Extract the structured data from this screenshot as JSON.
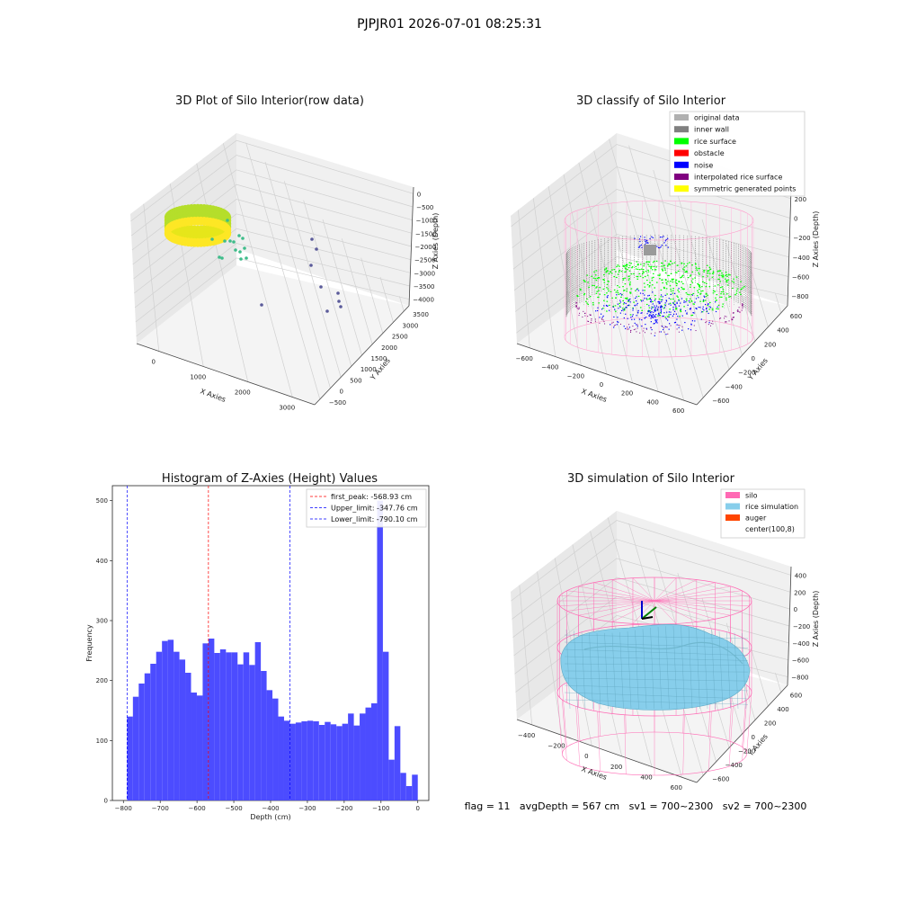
{
  "suptitle": "PJPJR01 2026-07-01 08:25:31",
  "footer": "flag = 11   avgDepth = 567 cm   sv1 = 700~2300   sv2 = 700~2300",
  "colors": {
    "silo": "#ff69b4",
    "rice_sim": "#87ceeb",
    "auger": "#ff4500",
    "original": "#b0b0b0",
    "inner_wall": "#808080",
    "rice_surface": "#00ff00",
    "obstacle": "#ff0000",
    "noise": "#0000ff",
    "interp": "#800080",
    "symmetric": "#ffff00",
    "hist": "#4c4cff"
  },
  "chart_data": [
    {
      "type": "scatter3d",
      "title": "3D Plot of Silo Interior(row data)",
      "xlabel": "X Axies",
      "ylabel": "Y Axies",
      "zlabel": "Z Axies (Depth)",
      "xticks": [
        "0",
        "1000",
        "2000",
        "3000"
      ],
      "yticks": [
        "−500",
        "0",
        "500",
        "1000",
        "1500",
        "2000",
        "2500",
        "3000",
        "3500"
      ],
      "zticks": [
        "0",
        "−500",
        "−1000",
        "−1500",
        "−2000",
        "−2500",
        "−3000",
        "−3500",
        "−4000"
      ]
    },
    {
      "type": "scatter3d",
      "title": "3D classify of Silo Interior",
      "xlabel": "X Axies",
      "ylabel": "Y Axies",
      "zlabel": "Z Axies (Depth)",
      "xticks": [
        "−600",
        "−400",
        "−200",
        "0",
        "200",
        "400",
        "600"
      ],
      "yticks": [
        "−600",
        "−400",
        "−200",
        "0",
        "200",
        "400",
        "600"
      ],
      "zticks": [
        "200",
        "0",
        "−200",
        "−400",
        "−600",
        "−800"
      ],
      "legend": [
        "original data",
        "inner wall",
        "rice surface",
        "obstacle",
        "noise",
        "interpolated rice surface",
        "symmetric generated points"
      ],
      "legend_position": "top-right"
    },
    {
      "type": "bar",
      "title": "Histogram of Z-Axies (Height) Values",
      "xlabel": "Depth (cm)",
      "ylabel": "Frequency",
      "xlim": [
        -830,
        30
      ],
      "ylim": [
        0,
        525
      ],
      "xticks": [
        "−800",
        "−700",
        "−600",
        "−500",
        "−400",
        "−300",
        "−200",
        "−100",
        "0"
      ],
      "yticks": [
        "0",
        "100",
        "200",
        "300",
        "400",
        "500"
      ],
      "bin_start": -790,
      "bin_width": 15.8,
      "values": [
        140,
        173,
        195,
        212,
        228,
        248,
        266,
        268,
        248,
        235,
        213,
        180,
        175,
        262,
        270,
        246,
        252,
        247,
        247,
        227,
        247,
        226,
        264,
        216,
        184,
        170,
        140,
        133,
        128,
        130,
        132,
        133,
        132,
        126,
        131,
        127,
        124,
        128,
        145,
        125,
        145,
        155,
        162,
        500,
        248,
        68,
        124,
        46,
        24,
        43
      ],
      "vlines": [
        {
          "label": "first_peak: -568.93 cm",
          "x": -568.93,
          "color": "#ff0000"
        },
        {
          "label": "Upper_limit: -347.76 cm",
          "x": -347.76,
          "color": "#0000ff"
        },
        {
          "label": "Lower_limit: -790.10 cm",
          "x": -790.1,
          "color": "#0000ff"
        }
      ],
      "legend_position": "top-right"
    },
    {
      "type": "surface3d",
      "title": "3D simulation of Silo Interior",
      "xlabel": "X Axies",
      "ylabel": "Y Axies",
      "zlabel": "Z Axies (Depth)",
      "xticks": [
        "−400",
        "−200",
        "0",
        "200",
        "400",
        "600"
      ],
      "yticks": [
        "−600",
        "−400",
        "−200",
        "0",
        "200",
        "400",
        "600"
      ],
      "zticks": [
        "400",
        "200",
        "0",
        "−200",
        "−400",
        "−600",
        "−800"
      ],
      "legend": [
        "silo",
        "rice simulation",
        "auger",
        "center(100,8)"
      ],
      "legend_position": "top-right"
    }
  ]
}
